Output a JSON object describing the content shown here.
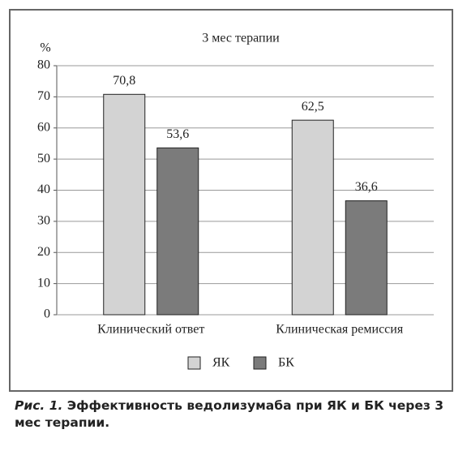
{
  "chart_data": {
    "type": "bar",
    "title": "3 мес терапии",
    "y_label": "%",
    "categories": [
      "Клинический ответ",
      "Клиническая ремиссия"
    ],
    "series": [
      {
        "name": "ЯК",
        "color": "#d3d3d3",
        "values": [
          70.8,
          62.5
        ],
        "value_labels": [
          "70,8",
          "62,5"
        ]
      },
      {
        "name": "БК",
        "color": "#7b7b7b",
        "values": [
          53.6,
          36.6
        ],
        "value_labels": [
          "53,6",
          "36,6"
        ]
      }
    ],
    "ylim": [
      0,
      80
    ],
    "yticks": [
      0,
      10,
      20,
      30,
      40,
      50,
      60,
      70,
      80
    ],
    "grid": true,
    "caption_label": "Рис. 1.",
    "caption": "Эффективность ведолизумаба при ЯК и БК через 3 мес терапии."
  }
}
